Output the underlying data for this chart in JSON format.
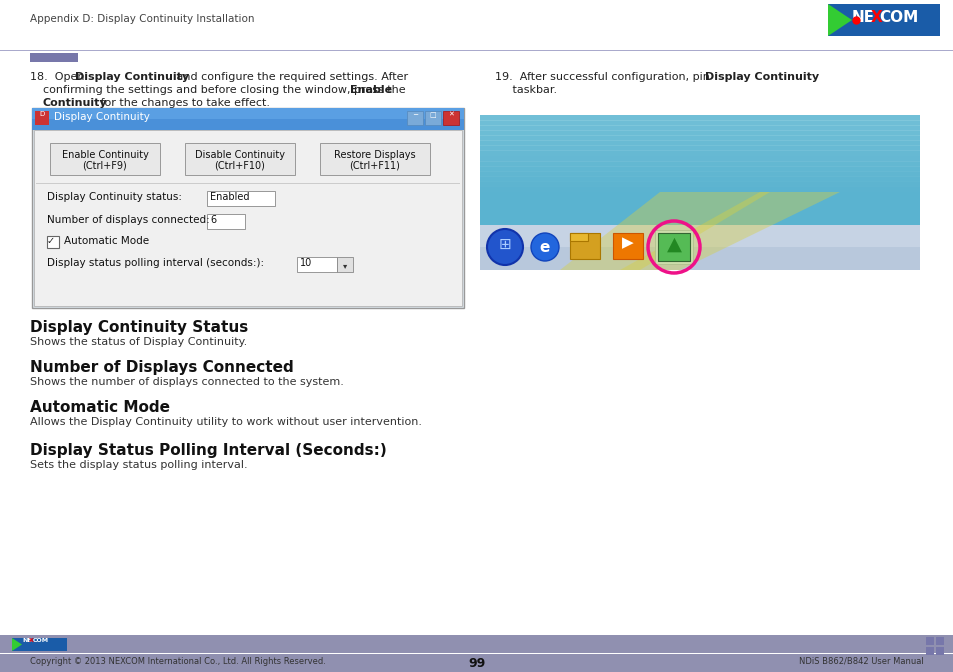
{
  "page_bg": "#ffffff",
  "header_text": "Appendix D: Display Continuity Installation",
  "footer_text_left": "Copyright © 2013 NEXCOM International Co., Ltd. All Rights Reserved.",
  "footer_text_center": "99",
  "footer_text_right": "NDiS B862/B842 User Manual",
  "nexcom_bg": "#1a5ca8",
  "footer_bar_color": "#9090b0",
  "header_line_color": "#aaaacc",
  "accent_bar_color": "#7777aa",
  "section1_title": "Display Continuity Status",
  "section1_body": "Shows the status of Display Continuity.",
  "section2_title": "Number of Displays Connected",
  "section2_body": "Shows the number of displays connected to the system.",
  "section3_title": "Automatic Mode",
  "section3_body": "Allows the Display Continuity utility to work without user intervention.",
  "section4_title": "Display Status Polling Interval (Seconds:)",
  "section4_body": "Sets the display status polling interval.",
  "dialog_title": "Display Continuity",
  "dialog_btn1_line1": "Enable Continuity",
  "dialog_btn1_line2": "(Ctrl+F9)",
  "dialog_btn2_line1": "Disable Continuity",
  "dialog_btn2_line2": "(Ctrl+F10)",
  "dialog_btn3_line1": "Restore Displays",
  "dialog_btn3_line2": "(Ctrl+F11)",
  "dialog_field1_label": "Display Continuity status:",
  "dialog_field1_value": "Enabled",
  "dialog_field2_label": "Number of displays connected:",
  "dialog_field2_value": "6",
  "dialog_check": "Automatic Mode",
  "dialog_poll_label": "Display status polling interval (seconds:)",
  "dialog_poll_value": "10"
}
